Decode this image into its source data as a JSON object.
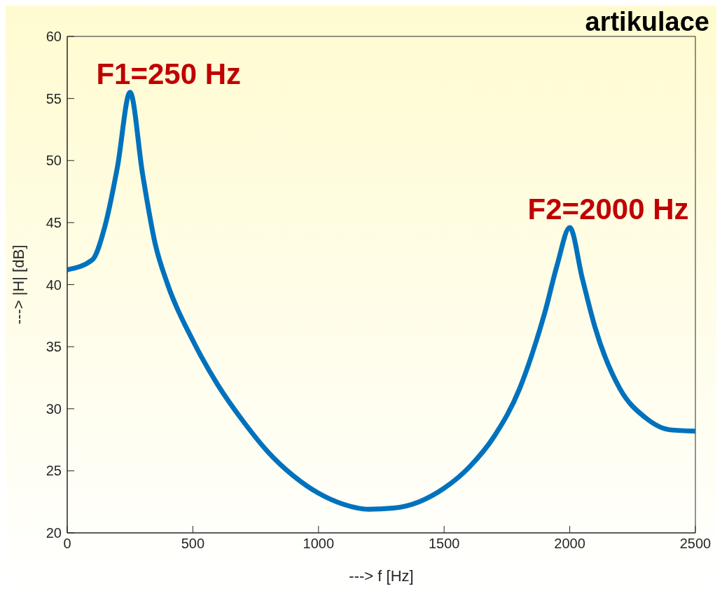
{
  "chart_data": {
    "type": "line",
    "title": "artikulace",
    "xlabel": "---> f [Hz]",
    "ylabel": "---> |H| [dB]",
    "x": [
      0,
      100,
      150,
      200,
      250,
      300,
      350,
      400,
      500,
      600,
      700,
      800,
      900,
      1000,
      1100,
      1200,
      1300,
      1400,
      1500,
      1600,
      1700,
      1800,
      1850,
      1900,
      1950,
      2000,
      2050,
      2100,
      2200,
      2300,
      2400,
      2500
    ],
    "series": [
      {
        "color": "#0072bd",
        "values": [
          41.2,
          42.0,
          44.7,
          49.5,
          55.5,
          48.9,
          43.3,
          40.0,
          35.5,
          31.9,
          29.0,
          26.5,
          24.6,
          23.2,
          22.3,
          21.9,
          22.0,
          22.5,
          23.6,
          25.3,
          27.8,
          31.6,
          34.4,
          37.7,
          41.6,
          44.6,
          40.5,
          36.6,
          31.6,
          29.3,
          28.3,
          28.2
        ]
      }
    ],
    "xlim": [
      0,
      2500
    ],
    "xticks": [
      0,
      500,
      1000,
      1500,
      2000,
      2500
    ],
    "ylim": [
      20,
      60
    ],
    "yticks": [
      20,
      25,
      30,
      35,
      40,
      45,
      50,
      55,
      60
    ],
    "annotations": [
      {
        "text": "F1=250 Hz",
        "x": 250,
        "y": 55.5
      },
      {
        "text": "F2=2000 Hz",
        "x": 2000,
        "y": 44.6
      }
    ],
    "grid": false,
    "legend": false,
    "marker": "none",
    "line_style": "solid"
  }
}
